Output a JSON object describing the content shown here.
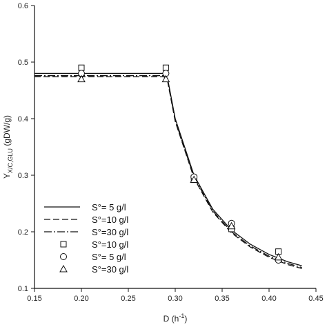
{
  "chart_data": {
    "type": "line",
    "xlabel": "D (h",
    "xlabel_sup": "-1",
    "xlabel_end": ")",
    "ylabel": "Y",
    "ylabel_sub": "X/C,GLU",
    "ylabel_unit": " (gDW/g)",
    "xlim": [
      0.15,
      0.45
    ],
    "ylim": [
      0.1,
      0.6
    ],
    "xticks": [
      "0.15",
      "0.20",
      "0.25",
      "0.30",
      "0.35",
      "0.40",
      "0.45"
    ],
    "yticks": [
      "0.1",
      "0.2",
      "0.3",
      "0.4",
      "0.5",
      "0.6"
    ],
    "grid": false,
    "legend_position": "bottom-left",
    "series": [
      {
        "name": "S°= 5 g/l",
        "kind": "line",
        "style": "solid",
        "x": [
          0.15,
          0.2,
          0.25,
          0.288,
          0.292,
          0.3,
          0.32,
          0.34,
          0.36,
          0.38,
          0.4,
          0.42,
          0.435
        ],
        "y": [
          0.48,
          0.48,
          0.48,
          0.48,
          0.47,
          0.4,
          0.3,
          0.24,
          0.203,
          0.178,
          0.16,
          0.147,
          0.14
        ]
      },
      {
        "name": "S°=10 g/l",
        "kind": "line",
        "style": "dashed",
        "x": [
          0.15,
          0.2,
          0.25,
          0.288,
          0.292,
          0.3,
          0.32,
          0.34,
          0.36,
          0.38,
          0.4,
          0.42,
          0.435
        ],
        "y": [
          0.474,
          0.474,
          0.474,
          0.474,
          0.465,
          0.395,
          0.295,
          0.235,
          0.198,
          0.173,
          0.155,
          0.142,
          0.135
        ]
      },
      {
        "name": "S°=30 g/l",
        "kind": "line",
        "style": "dashdot",
        "x": [
          0.15,
          0.2,
          0.25,
          0.288,
          0.292,
          0.3,
          0.32,
          0.34,
          0.36,
          0.38,
          0.4,
          0.42,
          0.435
        ],
        "y": [
          0.476,
          0.476,
          0.476,
          0.476,
          0.467,
          0.397,
          0.297,
          0.237,
          0.2,
          0.175,
          0.157,
          0.144,
          0.137
        ]
      },
      {
        "name": "S°=10 g/l",
        "kind": "marker",
        "marker": "square",
        "x": [
          0.2,
          0.29,
          0.32,
          0.36,
          0.41
        ],
        "y": [
          0.49,
          0.49,
          0.295,
          0.205,
          0.165
        ]
      },
      {
        "name": "S°= 5 g/l",
        "kind": "marker",
        "marker": "circle",
        "x": [
          0.2,
          0.29,
          0.32,
          0.36,
          0.41
        ],
        "y": [
          0.48,
          0.48,
          0.297,
          0.215,
          0.15
        ]
      },
      {
        "name": "S°=30 g/l",
        "kind": "marker",
        "marker": "triangle",
        "x": [
          0.2,
          0.29,
          0.32,
          0.36,
          0.41
        ],
        "y": [
          0.47,
          0.47,
          0.292,
          0.21,
          0.155
        ]
      }
    ]
  }
}
